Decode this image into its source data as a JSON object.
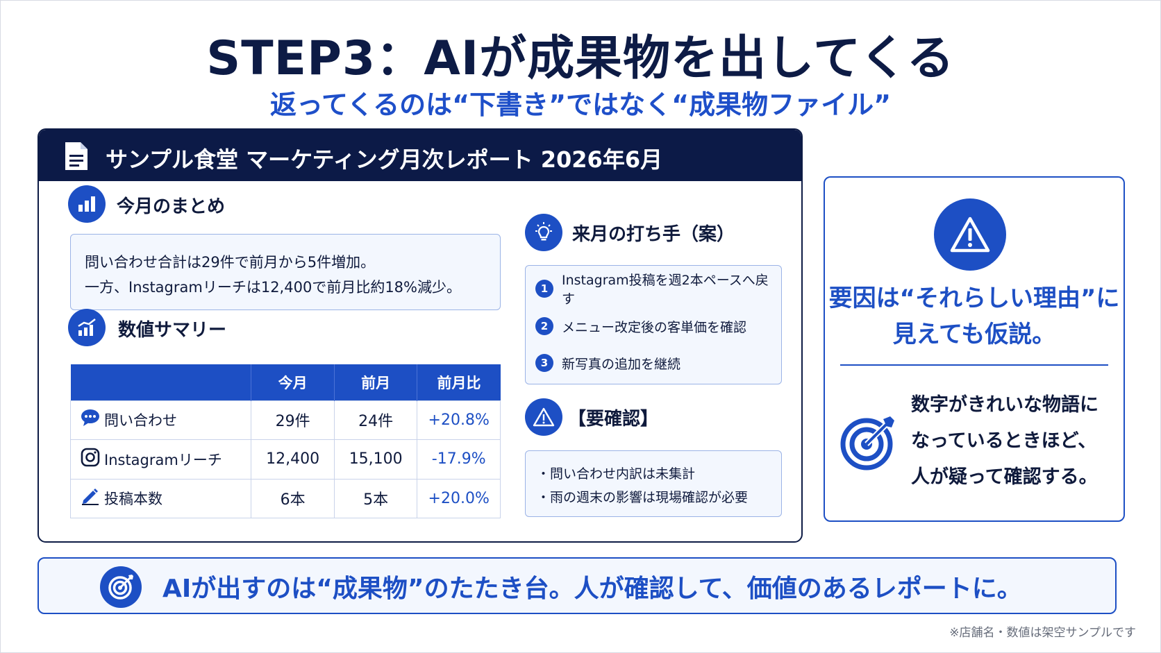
{
  "header": {
    "title": "STEP3：AIが成果物を出してくる",
    "subtitle": "返ってくるのは“下書き”ではなく“成果物ファイル”"
  },
  "report": {
    "title": "サンプル食堂 マーケティング月次レポート 2026年6月",
    "summary": {
      "heading": "今月のまとめ",
      "line1": "問い合わせ合計は29件で前月から5件増加。",
      "line2": "一方、Instagramリーチは12,400で前月比約18%減少。"
    },
    "table": {
      "heading": "数値サマリー",
      "columns": [
        "",
        "今月",
        "前月",
        "前月比"
      ],
      "rows": [
        {
          "label": "問い合わせ",
          "icon": "chat-icon",
          "this_month": "29件",
          "last_month": "24件",
          "change": "+20.8%"
        },
        {
          "label": "Instagramリーチ",
          "icon": "instagram-icon",
          "this_month": "12,400",
          "last_month": "15,100",
          "change": "-17.9%"
        },
        {
          "label": "投稿本数",
          "icon": "pencil-icon",
          "this_month": "6本",
          "last_month": "5本",
          "change": "+20.0%"
        }
      ]
    },
    "plan": {
      "heading": "来月の打ち手（案）",
      "items": [
        {
          "num": "1",
          "text": "Instagram投稿を週2本ペースへ戻す"
        },
        {
          "num": "2",
          "text": "メニュー改定後の客単価を確認"
        },
        {
          "num": "3",
          "text": "新写真の追加を継続"
        }
      ]
    },
    "check": {
      "heading": "【要確認】",
      "items": [
        "・問い合わせ内訳は未集計",
        "・雨の週末の影響は現場確認が必要"
      ]
    }
  },
  "side_panel": {
    "main_line1": "要因は“それらしい理由”に",
    "main_line2": "見えても仮説。",
    "sub_line1": "数字がきれいな物語に",
    "sub_line2": "なっているときほど、",
    "sub_line3": "人が疑って確認する。"
  },
  "banner": {
    "text": "AIが出すのは“成果物”のたたき台。人が確認して、価値のあるレポートに。"
  },
  "footnote": "※店舗名・数値は架空サンプルです",
  "colors": {
    "navy": "#0c1a47",
    "accent_blue": "#1d4fc4",
    "panel_bg": "#f3f7fe"
  }
}
